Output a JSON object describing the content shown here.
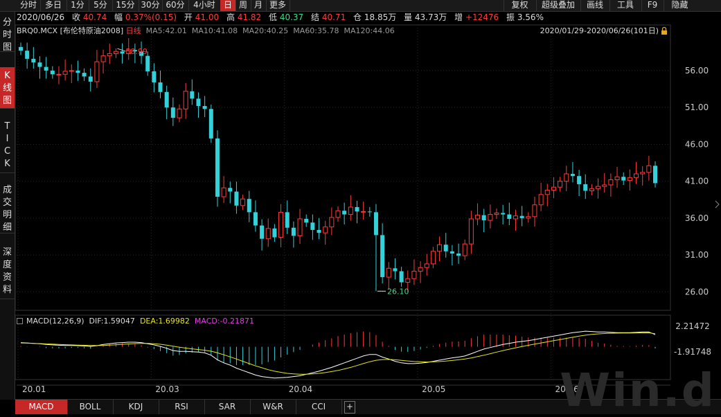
{
  "toolbar": {
    "periods": [
      "分时",
      "多日",
      "1分",
      "5分",
      "15分",
      "30分",
      "60分",
      "4小时",
      "日",
      "周",
      "月",
      "更多"
    ],
    "active_period": "日",
    "right_buttons": [
      "复权",
      "超级叠加",
      "画线",
      "工具",
      "F9",
      "隐藏"
    ]
  },
  "left_tabs": [
    "分时图",
    "K线图",
    "TICK",
    "成交明细",
    "深度资料"
  ],
  "active_left_tab": "K线图",
  "quote": {
    "date": "2020/06/26",
    "close_label": "收",
    "close": "40.74",
    "change_label": "幅",
    "change": "0.37%(0.15)",
    "open_label": "开",
    "open": "41.00",
    "high_label": "高",
    "high": "41.82",
    "low_label": "低",
    "low": "40.37",
    "settle_label": "结",
    "settle": "40.71",
    "oi_label": "仓",
    "oi": "18.85万",
    "vol_label": "量",
    "vol": "43.73万",
    "inc_label": "增",
    "inc": "+12476",
    "amp_label": "振",
    "amp": "3.56%"
  },
  "indicators": {
    "symbol": "BRQ0.MCX",
    "name": "[布伦特原油2008]",
    "period": "日线",
    "ma5": "MA5:42.01",
    "ma10": "MA10:41.08",
    "ma20": "MA20:40.25",
    "ma60": "MA60:35.78",
    "ma120": "MA120:44.06",
    "date_range": "2020/01/29-2020/06/26(101日)"
  },
  "macd": {
    "label": "MACD(12,26,9)",
    "dif": "DIF:1.59047",
    "dea": "DEA:1.69982",
    "macd": "MACD:-0.21871",
    "axis_top": "2.21472",
    "axis_bottom": "-1.91748"
  },
  "chart_data": {
    "type": "candlestick",
    "y_ticks": [
      "56.00",
      "51.00",
      "46.00",
      "41.00",
      "36.00",
      "31.00",
      "26.00"
    ],
    "y_tick_values": [
      56,
      51,
      46,
      41,
      36,
      31,
      26
    ],
    "x_ticks": [
      "20.01",
      "20.03",
      "20.04",
      "20.05",
      "20.06"
    ],
    "x_tick_index": [
      0,
      21,
      42,
      63,
      84
    ],
    "annotations": {
      "high": "58.99",
      "low": "26.10"
    },
    "high_index": 15,
    "low_index": 56,
    "closes": [
      58.7,
      57.6,
      57.1,
      56.5,
      56.0,
      55.5,
      55.5,
      55.9,
      56.0,
      55.7,
      55.2,
      54.5,
      57.2,
      58.0,
      58.3,
      58.6,
      58.3,
      58.8,
      58.6,
      58.0,
      55.9,
      54.4,
      53.1,
      51.0,
      49.6,
      50.8,
      53.2,
      52.2,
      51.2,
      50.8,
      46.8,
      38.9,
      40.1,
      39.6,
      37.7,
      38.6,
      36.8,
      35.0,
      33.2,
      34.6,
      33.4,
      36.8,
      34.7,
      33.6,
      35.9,
      35.4,
      34.4,
      34.0,
      34.8,
      36.1,
      37.0,
      36.5,
      37.5,
      36.9,
      36.9,
      36.8,
      33.7,
      28.0,
      29.2,
      28.8,
      27.3,
      27.8,
      28.8,
      29.3,
      29.8,
      31.5,
      32.4,
      31.5,
      31.2,
      30.9,
      32.5,
      35.9,
      36.4,
      35.7,
      36.5,
      36.7,
      36.5,
      35.9,
      36.3,
      36.0,
      36.2,
      37.8,
      39.2,
      39.8,
      40.2,
      41.0,
      42.0,
      41.7,
      40.6,
      39.7,
      40.0,
      40.3,
      40.5,
      41.2,
      41.6,
      41.1,
      41.5,
      42.0,
      42.2,
      43.1,
      40.74
    ],
    "dif": [
      0.55,
      0.5,
      0.45,
      0.4,
      0.3,
      0.25,
      0.2,
      0.18,
      0.18,
      0.15,
      0.1,
      0.05,
      0.15,
      0.3,
      0.4,
      0.5,
      0.55,
      0.6,
      0.6,
      0.55,
      0.4,
      0.25,
      0.05,
      -0.2,
      -0.5,
      -0.6,
      -0.6,
      -0.65,
      -0.7,
      -0.8,
      -1.1,
      -1.7,
      -2.1,
      -2.4,
      -2.8,
      -3.1,
      -3.4,
      -3.7,
      -3.9,
      -4.0,
      -4.1,
      -4.05,
      -4.0,
      -3.9,
      -3.8,
      -3.6,
      -3.4,
      -3.2,
      -2.95,
      -2.7,
      -2.4,
      -2.1,
      -1.8,
      -1.5,
      -1.2,
      -1.0,
      -1.0,
      -1.35,
      -1.6,
      -1.9,
      -2.1,
      -2.2,
      -2.2,
      -2.15,
      -2.05,
      -1.9,
      -1.75,
      -1.6,
      -1.45,
      -1.35,
      -1.2,
      -0.9,
      -0.6,
      -0.3,
      -0.1,
      0.1,
      0.3,
      0.45,
      0.6,
      0.7,
      0.8,
      0.95,
      1.1,
      1.25,
      1.4,
      1.55,
      1.7,
      1.85,
      1.95,
      2.05,
      2.0,
      1.95,
      1.95,
      1.9,
      1.85,
      1.85,
      1.85,
      1.9,
      1.95,
      1.95,
      1.59
    ],
    "dea": [
      0.5,
      0.48,
      0.45,
      0.42,
      0.38,
      0.35,
      0.3,
      0.28,
      0.25,
      0.22,
      0.2,
      0.18,
      0.17,
      0.18,
      0.22,
      0.27,
      0.32,
      0.38,
      0.42,
      0.45,
      0.44,
      0.4,
      0.33,
      0.22,
      0.08,
      -0.06,
      -0.17,
      -0.27,
      -0.36,
      -0.45,
      -0.58,
      -0.8,
      -1.05,
      -1.32,
      -1.6,
      -1.9,
      -2.2,
      -2.5,
      -2.75,
      -3.0,
      -3.2,
      -3.35,
      -3.48,
      -3.55,
      -3.6,
      -3.6,
      -3.55,
      -3.48,
      -3.38,
      -3.25,
      -3.1,
      -2.9,
      -2.7,
      -2.46,
      -2.2,
      -1.96,
      -1.77,
      -1.68,
      -1.66,
      -1.7,
      -1.78,
      -1.86,
      -1.93,
      -1.97,
      -1.99,
      -1.97,
      -1.93,
      -1.87,
      -1.79,
      -1.7,
      -1.6,
      -1.46,
      -1.29,
      -1.1,
      -0.9,
      -0.7,
      -0.5,
      -0.31,
      -0.13,
      0.04,
      0.19,
      0.35,
      0.5,
      0.65,
      0.8,
      0.95,
      1.1,
      1.25,
      1.39,
      1.52,
      1.62,
      1.69,
      1.74,
      1.77,
      1.79,
      1.8,
      1.81,
      1.82,
      1.83,
      1.84,
      1.7
    ]
  },
  "bottom_tabs": [
    "MACD",
    "BOLL",
    "KDJ",
    "RSI",
    "SAR",
    "W&R",
    "CCI",
    "+"
  ],
  "active_bottom_tab": "MACD",
  "watermark": "Win.d",
  "colors": {
    "up": "#ff3b3b",
    "down": "#33d1d9",
    "dif": "#ffffff",
    "dea": "#e6e61a",
    "bar_up": "#ff3b3b",
    "bar_down": "#33d1d9",
    "macd_text": "#e040e0"
  }
}
